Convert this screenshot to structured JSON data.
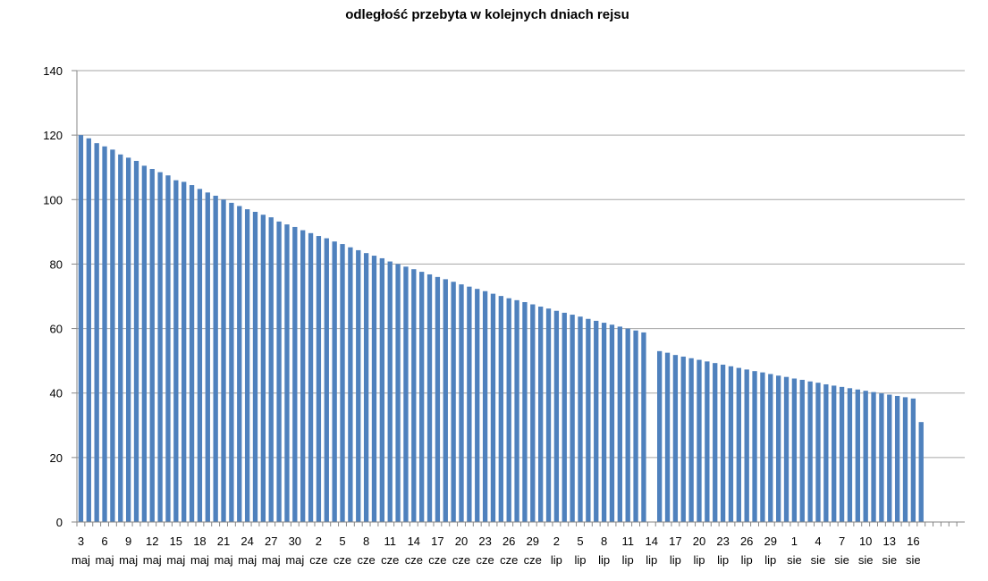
{
  "chart_data": {
    "type": "bar",
    "title": "odległość przebyta w kolejnych dniach rejsu",
    "xlabel": "",
    "ylabel": "",
    "ylim": [
      0,
      140
    ],
    "yticks": [
      0,
      20,
      40,
      60,
      80,
      100,
      120,
      140
    ],
    "grid": true,
    "legend": "none",
    "colors": {
      "bar": "#4f81bd",
      "grid": "#a6a6a6",
      "axis": "#868686"
    },
    "x_tick_labels": [
      {
        "day": "3",
        "month": "maj"
      },
      {
        "day": "6",
        "month": "maj"
      },
      {
        "day": "9",
        "month": "maj"
      },
      {
        "day": "12",
        "month": "maj"
      },
      {
        "day": "15",
        "month": "maj"
      },
      {
        "day": "18",
        "month": "maj"
      },
      {
        "day": "21",
        "month": "maj"
      },
      {
        "day": "24",
        "month": "maj"
      },
      {
        "day": "27",
        "month": "maj"
      },
      {
        "day": "30",
        "month": "maj"
      },
      {
        "day": "2",
        "month": "cze"
      },
      {
        "day": "5",
        "month": "cze"
      },
      {
        "day": "8",
        "month": "cze"
      },
      {
        "day": "11",
        "month": "cze"
      },
      {
        "day": "14",
        "month": "cze"
      },
      {
        "day": "17",
        "month": "cze"
      },
      {
        "day": "20",
        "month": "cze"
      },
      {
        "day": "23",
        "month": "cze"
      },
      {
        "day": "26",
        "month": "cze"
      },
      {
        "day": "29",
        "month": "cze"
      },
      {
        "day": "2",
        "month": "lip"
      },
      {
        "day": "5",
        "month": "lip"
      },
      {
        "day": "8",
        "month": "lip"
      },
      {
        "day": "11",
        "month": "lip"
      },
      {
        "day": "14",
        "month": "lip"
      },
      {
        "day": "17",
        "month": "lip"
      },
      {
        "day": "20",
        "month": "lip"
      },
      {
        "day": "23",
        "month": "lip"
      },
      {
        "day": "26",
        "month": "lip"
      },
      {
        "day": "29",
        "month": "lip"
      },
      {
        "day": "1",
        "month": "sie"
      },
      {
        "day": "4",
        "month": "sie"
      },
      {
        "day": "7",
        "month": "sie"
      },
      {
        "day": "10",
        "month": "sie"
      },
      {
        "day": "13",
        "month": "sie"
      },
      {
        "day": "16",
        "month": "sie"
      }
    ],
    "series": [
      {
        "values": [
          120,
          119,
          117.5,
          116.5,
          115.5,
          114,
          113,
          112,
          110.5,
          109.5,
          108.5,
          107.5,
          106,
          105.5,
          104.5,
          103.3,
          102.2,
          101.2,
          100,
          99,
          98,
          97,
          96.2,
          95.3,
          94.5,
          93.2,
          92.3,
          91.5,
          90.5,
          89.6,
          88.7,
          88,
          87,
          86.2,
          85.2,
          84.3,
          83.4,
          82.6,
          81.8,
          80.8,
          80,
          79.2,
          78.4,
          77.6,
          76.8,
          76,
          75.3,
          74.5,
          73.7,
          73,
          72.3,
          71.6,
          70.8,
          70.1,
          69.4,
          68.8,
          68.2,
          67.5,
          66.8,
          66.2,
          65.5,
          64.9,
          64.3,
          63.7,
          63,
          62.4,
          61.8,
          61.2,
          60.6,
          60,
          59.4,
          58.8,
          0,
          53,
          52.5,
          51.8,
          51.3,
          50.8,
          50.3,
          49.8,
          49.3,
          48.8,
          48.3,
          47.8,
          47.3,
          46.8,
          46.4,
          45.9,
          45.4,
          45,
          44.5,
          44.1,
          43.6,
          43.2,
          42.7,
          42.3,
          41.9,
          41.5,
          41.1,
          40.7,
          40.3,
          39.9,
          39.5,
          39.1,
          38.7,
          38.3,
          31,
          0,
          0,
          0,
          0,
          0
        ]
      }
    ]
  }
}
